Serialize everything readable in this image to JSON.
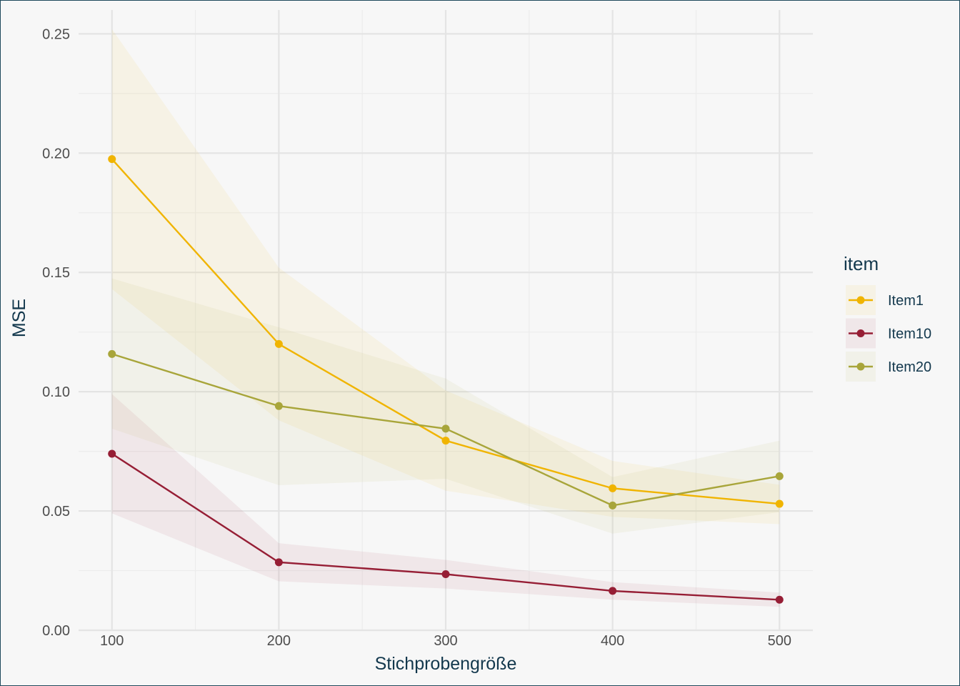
{
  "chart_data": {
    "type": "line",
    "title": "",
    "xlabel": "Stichprobengröße",
    "ylabel": "MSE",
    "x": [
      100,
      200,
      300,
      400,
      500
    ],
    "xlim": [
      80,
      520
    ],
    "ylim": [
      0,
      0.26
    ],
    "x_ticks": [
      100,
      200,
      300,
      400,
      500
    ],
    "x_tick_labels": [
      "100",
      "200",
      "300",
      "400",
      "500"
    ],
    "y_ticks": [
      0,
      0.05,
      0.1,
      0.15,
      0.2,
      0.25
    ],
    "y_tick_labels": [
      "0.00",
      "0.05",
      "0.10",
      "0.15",
      "0.20",
      "0.25"
    ],
    "grid": true,
    "legend": {
      "title": "item",
      "position": "right"
    },
    "series": [
      {
        "name": "Item1",
        "color": "#f0b400",
        "values": [
          0.1975,
          0.12,
          0.0795,
          0.0595,
          0.053
        ],
        "lower": [
          0.143,
          0.088,
          0.0585,
          0.0475,
          0.0445
        ],
        "upper": [
          0.252,
          0.152,
          0.1005,
          0.071,
          0.061
        ]
      },
      {
        "name": "Item10",
        "color": "#961e35",
        "values": [
          0.074,
          0.0285,
          0.0235,
          0.0165,
          0.0128
        ],
        "lower": [
          0.049,
          0.0205,
          0.0175,
          0.0128,
          0.0098
        ],
        "upper": [
          0.099,
          0.0365,
          0.0295,
          0.0202,
          0.0158
        ]
      },
      {
        "name": "Item20",
        "color": "#a8a53a",
        "values": [
          0.1158,
          0.094,
          0.0845,
          0.0523,
          0.0646
        ],
        "lower": [
          0.0845,
          0.0608,
          0.0635,
          0.0405,
          0.0495
        ],
        "upper": [
          0.1475,
          0.127,
          0.1055,
          0.0642,
          0.0795
        ]
      }
    ]
  }
}
